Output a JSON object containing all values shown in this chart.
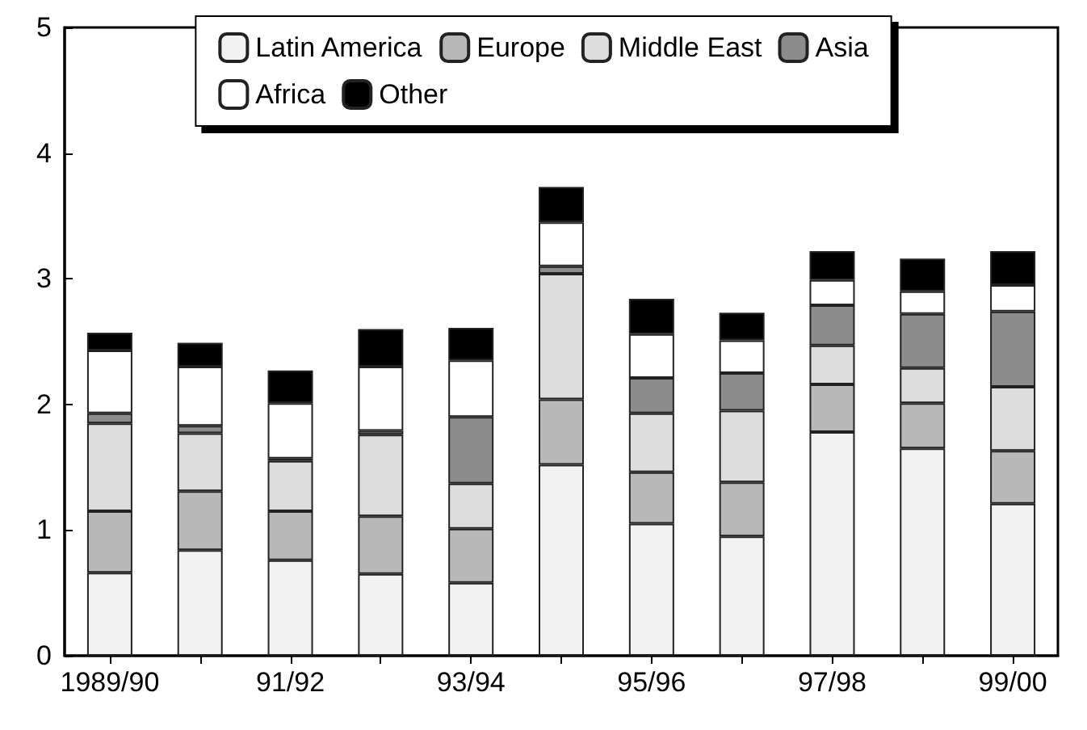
{
  "chart_data": {
    "type": "bar",
    "stacked": true,
    "categories": [
      "1989/90",
      null,
      "91/92",
      null,
      "93/94",
      null,
      "95/96",
      null,
      "97/98",
      null,
      "99/00"
    ],
    "series": [
      {
        "name": "Latin America",
        "color": "#f2f2f2",
        "values": [
          0.66,
          0.84,
          0.76,
          0.65,
          0.58,
          1.52,
          1.05,
          0.95,
          1.78,
          1.65,
          1.21
        ]
      },
      {
        "name": "Europe",
        "color": "#b8b8b8",
        "values": [
          0.49,
          0.47,
          0.39,
          0.46,
          0.43,
          0.52,
          0.41,
          0.43,
          0.38,
          0.36,
          0.42
        ]
      },
      {
        "name": "Middle East",
        "color": "#dddddd",
        "values": [
          0.7,
          0.46,
          0.4,
          0.65,
          0.36,
          1.0,
          0.47,
          0.57,
          0.31,
          0.28,
          0.51
        ]
      },
      {
        "name": "Asia",
        "color": "#8c8c8c",
        "values": [
          0.08,
          0.06,
          0.02,
          0.03,
          0.53,
          0.06,
          0.28,
          0.3,
          0.32,
          0.43,
          0.6
        ]
      },
      {
        "name": "Africa",
        "color": "#ffffff",
        "values": [
          0.5,
          0.47,
          0.44,
          0.51,
          0.45,
          0.35,
          0.35,
          0.26,
          0.2,
          0.18,
          0.21
        ]
      },
      {
        "name": "Other",
        "color": "#000000",
        "values": [
          0.14,
          0.19,
          0.26,
          0.3,
          0.26,
          0.28,
          0.28,
          0.22,
          0.23,
          0.26,
          0.27
        ]
      }
    ],
    "ylim": [
      0,
      5
    ],
    "yticks": [
      0,
      1,
      2,
      3,
      4,
      5
    ],
    "grid": false,
    "legend": "top"
  }
}
